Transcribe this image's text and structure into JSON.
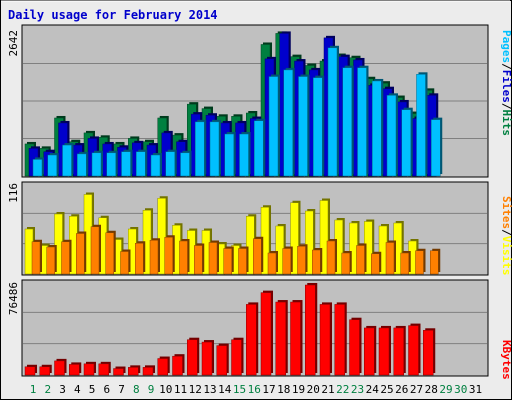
{
  "title": "Daily usage for February 2014",
  "colors": {
    "background": "#ececec",
    "panel": "#c0c0c0",
    "title": "#0000cc",
    "hits": "#008040",
    "files": "#0000cc",
    "pages": "#00c0ff",
    "visits": "#ffff00",
    "sites": "#ff8000",
    "kbytes": "#ff0000",
    "weekend_label": "#008040",
    "weekday_label": "#000000"
  },
  "chart_data": {
    "type": "bar",
    "title": "Daily usage for February 2014",
    "categories": [
      "1",
      "2",
      "3",
      "4",
      "5",
      "6",
      "7",
      "8",
      "9",
      "10",
      "11",
      "12",
      "13",
      "14",
      "15",
      "16",
      "17",
      "18",
      "19",
      "20",
      "21",
      "22",
      "23",
      "24",
      "25",
      "26",
      "27",
      "28",
      "29",
      "30",
      "31"
    ],
    "weekend_days": [
      "1",
      "2",
      "8",
      "9",
      "15",
      "16",
      "22",
      "23",
      "29",
      "30"
    ],
    "panels": [
      {
        "max_label": "2642",
        "ylim": [
          0,
          2642
        ],
        "legend": [
          {
            "text": "Pages",
            "color": "#00c0ff"
          },
          {
            "text": "/",
            "color": "#000000"
          },
          {
            "text": "Files",
            "color": "#0000cc"
          },
          {
            "text": "/",
            "color": "#000000"
          },
          {
            "text": "Hits",
            "color": "#008040"
          }
        ],
        "series": [
          {
            "name": "Hits",
            "color": "#008040",
            "values": [
              580,
              500,
              1050,
              620,
              780,
              700,
              580,
              680,
              620,
              1050,
              740,
              1300,
              1220,
              1080,
              1080,
              1140,
              2380,
              2580,
              2160,
              2000,
              2080,
              2180,
              2140,
              1760,
              1680,
              1420,
              1130,
              1550,
              0,
              0,
              0
            ]
          },
          {
            "name": "Files",
            "color": "#0000cc",
            "values": [
              500,
              440,
              960,
              560,
              680,
              580,
              520,
              600,
              560,
              780,
              620,
              1120,
              1100,
              960,
              960,
              1040,
              2120,
              2580,
              2080,
              1920,
              2500,
              2160,
              2100,
              1640,
              1580,
              1340,
              1040,
              1460,
              0,
              0,
              0
            ]
          },
          {
            "name": "Pages",
            "color": "#00c0ff",
            "values": [
              300,
              380,
              560,
              400,
              420,
              420,
              440,
              440,
              380,
              440,
              420,
              980,
              980,
              760,
              760,
              1000,
              1800,
              1920,
              1800,
              1780,
              2320,
              1960,
              1960,
              1720,
              1460,
              1200,
              1840,
              1020,
              0,
              0,
              0
            ]
          }
        ]
      },
      {
        "max_label": "116",
        "ylim": [
          0,
          116
        ],
        "legend": [
          {
            "text": "Sites",
            "color": "#ff8000"
          },
          {
            "text": "/",
            "color": "#000000"
          },
          {
            "text": "Visits",
            "color": "#ffff00"
          }
        ],
        "series": [
          {
            "name": "Visits",
            "color": "#ffff00",
            "values": [
              60,
              38,
              80,
              77,
              106,
              75,
              46,
              60,
              85,
              101,
              65,
              58,
              58,
              40,
              38,
              77,
              89,
              64,
              95,
              84,
              98,
              72,
              68,
              70,
              64,
              68,
              44,
              0,
              0,
              0,
              0
            ]
          },
          {
            "name": "Sites",
            "color": "#ff8000",
            "values": [
              43,
              36,
              43,
              54,
              63,
              55,
              30,
              41,
              45,
              49,
              44,
              38,
              42,
              34,
              34,
              47,
              28,
              34,
              37,
              32,
              44,
              28,
              38,
              27,
              42,
              28,
              31,
              31,
              0,
              0,
              0
            ]
          }
        ]
      },
      {
        "max_label": "76486",
        "ylim": [
          0,
          76486
        ],
        "legend": [
          {
            "text": "KBytes",
            "color": "#ff0000"
          }
        ],
        "series": [
          {
            "name": "KBytes",
            "color": "#ff0000",
            "values": [
              7000,
              7000,
              12000,
              9000,
              9500,
              9500,
              5500,
              6500,
              6500,
              14000,
              16000,
              30000,
              28000,
              25000,
              30000,
              60000,
              70000,
              62000,
              62000,
              76486,
              60000,
              60000,
              47000,
              40000,
              40000,
              40000,
              42000,
              38000,
              0,
              0,
              0
            ]
          }
        ]
      }
    ]
  }
}
